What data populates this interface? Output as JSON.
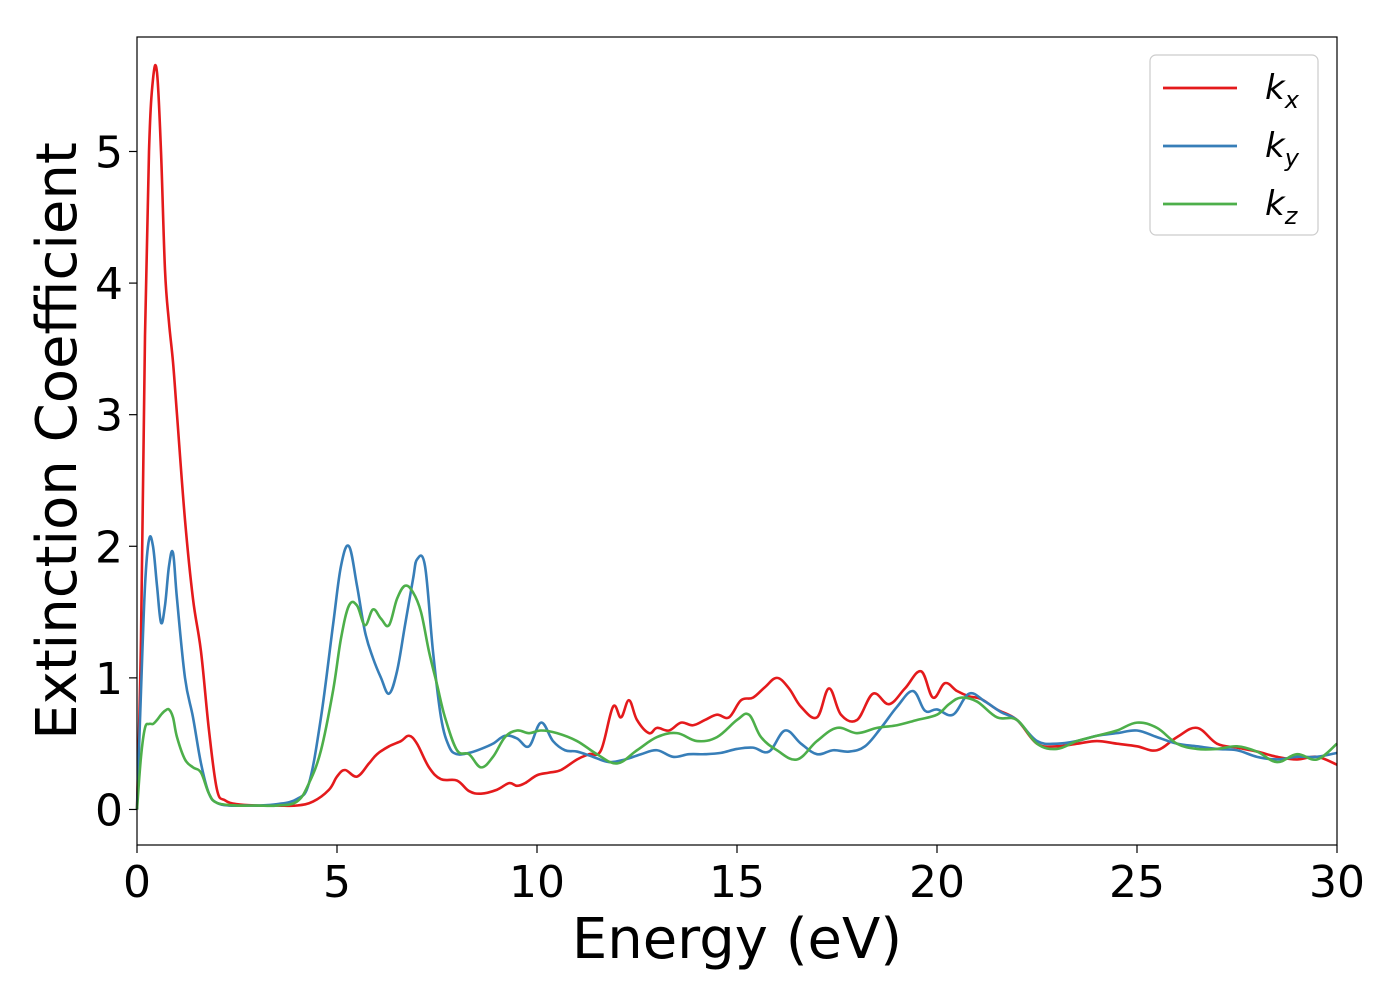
{
  "chart_data": {
    "type": "line",
    "xlabel": "Energy (eV)",
    "ylabel": "Extinction Coefficient",
    "xlim": [
      0,
      30
    ],
    "ylim": [
      -0.27,
      5.87
    ],
    "xticks": [
      0,
      5,
      10,
      15,
      20,
      25,
      30
    ],
    "yticks": [
      0,
      1,
      2,
      3,
      4,
      5
    ],
    "grid": false,
    "legend": "top-right",
    "series": [
      {
        "name": "k_x",
        "legend_base": "k",
        "legend_sub": "x",
        "color": "#e41a1c",
        "x": [
          0,
          0.1,
          0.2,
          0.3,
          0.4,
          0.5,
          0.6,
          0.7,
          0.8,
          0.9,
          1.0,
          1.2,
          1.4,
          1.6,
          1.8,
          2.0,
          2.2,
          2.5,
          3.0,
          3.5,
          4.0,
          4.4,
          4.8,
          5.0,
          5.2,
          5.5,
          5.8,
          6.0,
          6.3,
          6.6,
          6.8,
          7.0,
          7.3,
          7.6,
          8.0,
          8.3,
          8.6,
          9.0,
          9.3,
          9.5,
          9.7,
          10.0,
          10.3,
          10.6,
          11.0,
          11.3,
          11.6,
          11.9,
          12.1,
          12.3,
          12.5,
          12.8,
          13.0,
          13.3,
          13.6,
          13.9,
          14.2,
          14.5,
          14.8,
          15.1,
          15.4,
          15.7,
          16.0,
          16.3,
          16.6,
          17.0,
          17.3,
          17.6,
          18.0,
          18.4,
          18.8,
          19.2,
          19.6,
          19.9,
          20.2,
          20.5,
          20.8,
          21.1,
          21.5,
          22.0,
          22.5,
          23.0,
          23.5,
          24.0,
          24.5,
          25.0,
          25.5,
          26.0,
          26.5,
          27.0,
          27.5,
          28.0,
          28.5,
          29.0,
          29.5,
          30.0
        ],
        "y": [
          0.0,
          1.3,
          3.6,
          5.0,
          5.55,
          5.6,
          5.0,
          4.1,
          3.7,
          3.4,
          3.0,
          2.2,
          1.6,
          1.2,
          0.6,
          0.15,
          0.07,
          0.04,
          0.03,
          0.03,
          0.03,
          0.06,
          0.15,
          0.25,
          0.3,
          0.25,
          0.35,
          0.42,
          0.48,
          0.52,
          0.56,
          0.5,
          0.32,
          0.23,
          0.22,
          0.14,
          0.12,
          0.15,
          0.2,
          0.18,
          0.2,
          0.26,
          0.28,
          0.3,
          0.38,
          0.42,
          0.45,
          0.78,
          0.7,
          0.83,
          0.68,
          0.58,
          0.62,
          0.6,
          0.66,
          0.64,
          0.68,
          0.72,
          0.7,
          0.83,
          0.85,
          0.93,
          1.0,
          0.92,
          0.78,
          0.7,
          0.92,
          0.72,
          0.68,
          0.88,
          0.8,
          0.92,
          1.05,
          0.85,
          0.96,
          0.9,
          0.86,
          0.84,
          0.76,
          0.68,
          0.5,
          0.48,
          0.5,
          0.52,
          0.5,
          0.48,
          0.45,
          0.55,
          0.62,
          0.5,
          0.47,
          0.44,
          0.4,
          0.38,
          0.4,
          0.34
        ]
      },
      {
        "name": "k_y",
        "legend_base": "k",
        "legend_sub": "y",
        "color": "#377eb8",
        "x": [
          0,
          0.1,
          0.2,
          0.3,
          0.4,
          0.5,
          0.6,
          0.7,
          0.8,
          0.9,
          1.0,
          1.2,
          1.4,
          1.6,
          1.8,
          2.0,
          2.3,
          2.7,
          3.0,
          3.5,
          4.0,
          4.3,
          4.6,
          4.9,
          5.1,
          5.3,
          5.5,
          5.7,
          5.9,
          6.1,
          6.3,
          6.5,
          6.7,
          6.9,
          7.0,
          7.2,
          7.4,
          7.6,
          7.8,
          8.0,
          8.3,
          8.6,
          8.9,
          9.2,
          9.5,
          9.8,
          10.1,
          10.4,
          10.7,
          11.0,
          11.4,
          11.8,
          12.2,
          12.6,
          13.0,
          13.4,
          13.8,
          14.2,
          14.6,
          15.0,
          15.4,
          15.8,
          16.2,
          16.6,
          17.0,
          17.4,
          17.8,
          18.2,
          18.6,
          19.0,
          19.4,
          19.7,
          20.0,
          20.4,
          20.8,
          21.2,
          21.6,
          22.0,
          22.5,
          23.0,
          23.5,
          24.0,
          24.5,
          25.0,
          25.5,
          26.0,
          26.5,
          27.0,
          27.5,
          28.0,
          28.5,
          29.0,
          29.5,
          30.0
        ],
        "y": [
          0.0,
          0.9,
          1.7,
          2.05,
          2.0,
          1.7,
          1.42,
          1.55,
          1.85,
          1.95,
          1.6,
          1.0,
          0.7,
          0.35,
          0.12,
          0.05,
          0.03,
          0.03,
          0.03,
          0.04,
          0.08,
          0.2,
          0.7,
          1.4,
          1.85,
          2.0,
          1.7,
          1.35,
          1.15,
          1.0,
          0.88,
          1.05,
          1.4,
          1.75,
          1.9,
          1.85,
          1.2,
          0.7,
          0.48,
          0.42,
          0.43,
          0.46,
          0.5,
          0.56,
          0.54,
          0.48,
          0.66,
          0.52,
          0.45,
          0.44,
          0.4,
          0.36,
          0.38,
          0.42,
          0.45,
          0.4,
          0.42,
          0.42,
          0.43,
          0.46,
          0.47,
          0.44,
          0.6,
          0.5,
          0.42,
          0.45,
          0.44,
          0.48,
          0.62,
          0.78,
          0.9,
          0.75,
          0.76,
          0.72,
          0.88,
          0.82,
          0.74,
          0.68,
          0.52,
          0.5,
          0.52,
          0.56,
          0.58,
          0.6,
          0.55,
          0.5,
          0.48,
          0.46,
          0.45,
          0.4,
          0.38,
          0.4,
          0.4,
          0.43
        ]
      },
      {
        "name": "k_z",
        "legend_base": "k",
        "legend_sub": "z",
        "color": "#4daf4a",
        "x": [
          0,
          0.1,
          0.2,
          0.3,
          0.4,
          0.5,
          0.6,
          0.7,
          0.8,
          0.9,
          1.0,
          1.2,
          1.4,
          1.6,
          1.8,
          2.0,
          2.5,
          3.0,
          3.5,
          4.0,
          4.3,
          4.6,
          4.9,
          5.1,
          5.3,
          5.5,
          5.7,
          5.9,
          6.1,
          6.3,
          6.5,
          6.7,
          6.9,
          7.1,
          7.3,
          7.5,
          7.7,
          8.0,
          8.3,
          8.6,
          8.9,
          9.2,
          9.5,
          9.8,
          10.1,
          10.5,
          11.0,
          11.5,
          12.0,
          12.5,
          13.0,
          13.5,
          14.0,
          14.5,
          15.0,
          15.3,
          15.6,
          16.0,
          16.5,
          17.0,
          17.5,
          18.0,
          18.5,
          19.0,
          19.5,
          20.0,
          20.3,
          20.6,
          21.0,
          21.5,
          22.0,
          22.5,
          23.0,
          23.5,
          24.0,
          24.5,
          25.0,
          25.5,
          26.0,
          26.5,
          27.0,
          27.5,
          28.0,
          28.5,
          29.0,
          29.5,
          30.0
        ],
        "y": [
          0.0,
          0.4,
          0.62,
          0.65,
          0.65,
          0.68,
          0.72,
          0.75,
          0.76,
          0.7,
          0.55,
          0.38,
          0.32,
          0.28,
          0.12,
          0.05,
          0.03,
          0.03,
          0.03,
          0.06,
          0.2,
          0.45,
          0.9,
          1.3,
          1.55,
          1.55,
          1.4,
          1.52,
          1.45,
          1.4,
          1.6,
          1.7,
          1.65,
          1.5,
          1.2,
          0.95,
          0.7,
          0.45,
          0.42,
          0.32,
          0.4,
          0.55,
          0.6,
          0.58,
          0.6,
          0.58,
          0.52,
          0.42,
          0.35,
          0.45,
          0.55,
          0.58,
          0.52,
          0.55,
          0.68,
          0.72,
          0.55,
          0.45,
          0.38,
          0.52,
          0.62,
          0.58,
          0.62,
          0.64,
          0.68,
          0.72,
          0.8,
          0.85,
          0.82,
          0.7,
          0.68,
          0.5,
          0.46,
          0.52,
          0.56,
          0.6,
          0.66,
          0.62,
          0.5,
          0.46,
          0.46,
          0.48,
          0.44,
          0.36,
          0.42,
          0.38,
          0.5
        ]
      }
    ]
  }
}
